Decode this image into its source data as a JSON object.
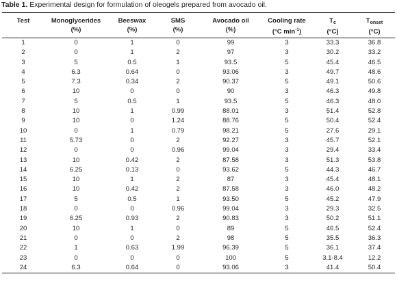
{
  "caption": {
    "label": "Table 1.",
    "text": " Experimental design for formulation of oleogels prepared from avocado oil."
  },
  "headers": {
    "test": "Test",
    "mono_line1": "Monoglycerides",
    "mono_line2": "(%)",
    "bees_line1": "Beeswax",
    "bees_line2": "(%)",
    "sms_line1": "SMS",
    "sms_line2": "(%)",
    "avo_line1": "Avocado oil",
    "avo_line2": "(%)",
    "cool_line1": "Cooling rate",
    "cool_line2_pre": "(°C min",
    "cool_line2_sup": "-1",
    "cool_line2_post": ")",
    "tc_main": "T",
    "tc_sub": "c",
    "tc_line2": "(°C)",
    "tonset_main": "T",
    "tonset_sub": "onset",
    "tonset_line2": "(°C)"
  },
  "rows": [
    [
      "1",
      "0",
      "1",
      "0",
      "99",
      "3",
      "33.3",
      "36.8"
    ],
    [
      "2",
      "0",
      "1",
      "2",
      "97",
      "3",
      "30.2",
      "33.2"
    ],
    [
      "3",
      "5",
      "0.5",
      "1",
      "93.5",
      "5",
      "45.4",
      "46.5"
    ],
    [
      "4",
      "6.3",
      "0.64",
      "0",
      "93.06",
      "3",
      "49.7",
      "48.6"
    ],
    [
      "5",
      "7.3",
      "0.34",
      "2",
      "90.37",
      "5",
      "49.1",
      "50.6"
    ],
    [
      "6",
      "10",
      "0",
      "0",
      "90",
      "3",
      "46.3",
      "49.8"
    ],
    [
      "7",
      "5",
      "0.5",
      "1",
      "93.5",
      "5",
      "46.3",
      "48.0"
    ],
    [
      "8",
      "10",
      "1",
      "0.99",
      "88.01",
      "3",
      "51.4",
      "52.8"
    ],
    [
      "9",
      "10",
      "0",
      "1.24",
      "88.76",
      "5",
      "50.4",
      "52.4"
    ],
    [
      "10",
      "0",
      "1",
      "0.79",
      "98.21",
      "5",
      "27.6",
      "29.1"
    ],
    [
      "11",
      "5.73",
      "0",
      "2",
      "92.27",
      "3",
      "45.7",
      "52.1"
    ],
    [
      "12",
      "0",
      "0",
      "0.96",
      "99.04",
      "3",
      "29.4",
      "33.4"
    ],
    [
      "13",
      "10",
      "0.42",
      "2",
      "87.58",
      "3",
      "51.3",
      "53.8"
    ],
    [
      "14",
      "6.25",
      "0.13",
      "0",
      "93.62",
      "5",
      "44.3",
      "46.7"
    ],
    [
      "15",
      "10",
      "1",
      "2",
      "87",
      "3",
      "45.4",
      "48.1"
    ],
    [
      "16",
      "10",
      "0.42",
      "2",
      "87.58",
      "3",
      "46.0",
      "48.2"
    ],
    [
      "17",
      "5",
      "0.5",
      "1",
      "93.50",
      "5",
      "45.2",
      "47.9"
    ],
    [
      "18",
      "0",
      "0",
      "0.96",
      "99.04",
      "3",
      "29.3",
      "32.5"
    ],
    [
      "19",
      "6.25",
      "0.93",
      "2",
      "90.83",
      "3",
      "50.2",
      "51.1"
    ],
    [
      "20",
      "10",
      "1",
      "0",
      "89",
      "5",
      "46.5",
      "52.4"
    ],
    [
      "21",
      "0",
      "0",
      "2",
      "98",
      "5",
      "35.5",
      "36.3"
    ],
    [
      "22",
      "1",
      "0.63",
      "1.99",
      "96.39",
      "5",
      "36.1",
      "37.4"
    ],
    [
      "23",
      "0",
      "0",
      "0",
      "100",
      "5",
      "3.1-8.4",
      "12.2"
    ],
    [
      "24",
      "6.3",
      "0.64",
      "0",
      "93.06",
      "3",
      "41.4",
      "50.4"
    ]
  ]
}
